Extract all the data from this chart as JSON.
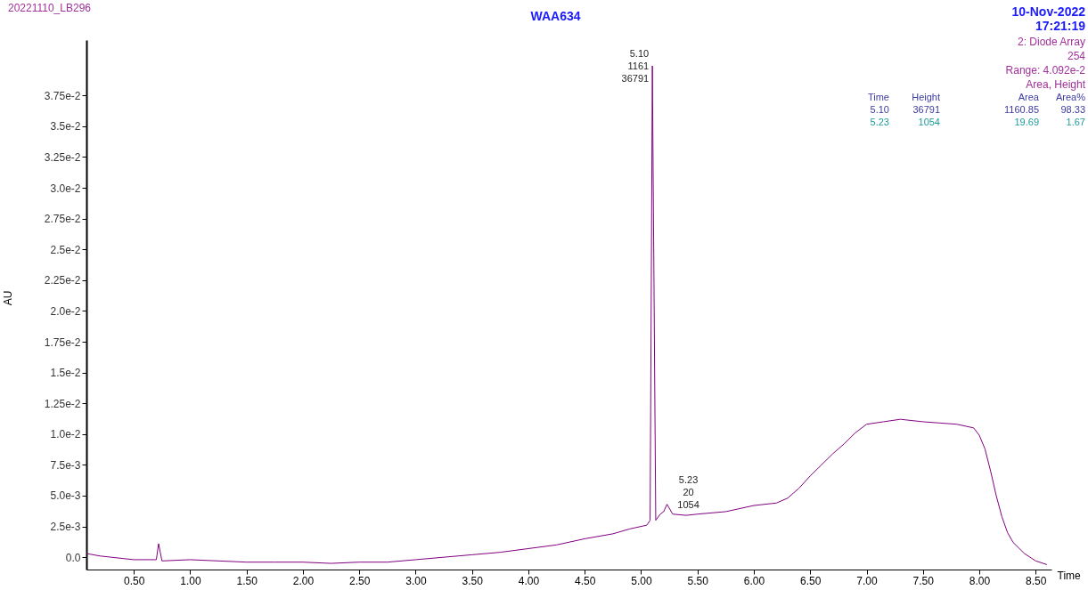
{
  "chart_data": {
    "type": "line",
    "title": "WAA634",
    "xlabel": "Time",
    "ylabel": "AU",
    "x": [
      0.08,
      0.2,
      0.3,
      0.5,
      0.7,
      0.72,
      0.75,
      1.0,
      1.25,
      1.5,
      1.75,
      2.0,
      2.25,
      2.5,
      2.75,
      3.0,
      3.25,
      3.5,
      3.75,
      4.0,
      4.25,
      4.5,
      4.75,
      4.9,
      5.05,
      5.08,
      5.1,
      5.13,
      5.17,
      5.2,
      5.23,
      5.28,
      5.4,
      5.5,
      5.75,
      6.0,
      6.2,
      6.3,
      6.4,
      6.5,
      6.6,
      6.7,
      6.8,
      6.9,
      7.0,
      7.15,
      7.3,
      7.5,
      7.65,
      7.8,
      7.95,
      8.0,
      8.05,
      8.1,
      8.15,
      8.2,
      8.25,
      8.3,
      8.4,
      8.5,
      8.6
    ],
    "series": [
      {
        "color": "#800080",
        "values": [
          0.0003,
          0.0001,
          0.0,
          -0.0002,
          -0.0002,
          0.0011,
          -0.0003,
          -0.0002,
          -0.0003,
          -0.0004,
          -0.0004,
          -0.0004,
          -0.0005,
          -0.0004,
          -0.0004,
          -0.0002,
          0.0,
          0.0002,
          0.0004,
          0.0007,
          0.001,
          0.0015,
          0.0019,
          0.0023,
          0.0026,
          0.003,
          0.0399,
          0.003,
          0.0035,
          0.0037,
          0.0043,
          0.0035,
          0.0034,
          0.0035,
          0.0037,
          0.0042,
          0.0044,
          0.0048,
          0.0056,
          0.0066,
          0.0075,
          0.0084,
          0.0092,
          0.0101,
          0.0108,
          0.011,
          0.0112,
          0.011,
          0.0109,
          0.0108,
          0.0105,
          0.0099,
          0.0088,
          0.007,
          0.005,
          0.0033,
          0.002,
          0.0012,
          0.0003,
          -0.0003,
          -0.0006
        ]
      }
    ],
    "xlim": [
      0.08,
      8.64
    ],
    "ylim": [
      -0.001,
      0.042
    ],
    "xticks": [
      {
        "value": 0.5,
        "label": "0.50"
      },
      {
        "value": 1,
        "label": "1.00"
      },
      {
        "value": 1.5,
        "label": "1.50"
      },
      {
        "value": 2,
        "label": "2.00"
      },
      {
        "value": 2.5,
        "label": "2.50"
      },
      {
        "value": 3,
        "label": "3.00"
      },
      {
        "value": 3.5,
        "label": "3.50"
      },
      {
        "value": 4,
        "label": "4.00"
      },
      {
        "value": 4.5,
        "label": "4.50"
      },
      {
        "value": 5,
        "label": "5.00"
      },
      {
        "value": 5.5,
        "label": "5.50"
      },
      {
        "value": 6,
        "label": "6.00"
      },
      {
        "value": 6.5,
        "label": "6.50"
      },
      {
        "value": 7,
        "label": "7.00"
      },
      {
        "value": 7.5,
        "label": "7.50"
      },
      {
        "value": 8,
        "label": "8.00"
      },
      {
        "value": 8.5,
        "label": "8.50"
      }
    ],
    "yticks": [
      {
        "value": 0,
        "label": "0.0"
      },
      {
        "value": 0.0025,
        "label": "2.5e-3"
      },
      {
        "value": 0.005,
        "label": "5.0e-3"
      },
      {
        "value": 0.0075,
        "label": "7.5e-3"
      },
      {
        "value": 0.01,
        "label": "1.0e-2"
      },
      {
        "value": 0.0125,
        "label": "1.25e-2"
      },
      {
        "value": 0.015,
        "label": "1.5e-2"
      },
      {
        "value": 0.0175,
        "label": "1.75e-2"
      },
      {
        "value": 0.02,
        "label": "2.0e-2"
      },
      {
        "value": 0.0225,
        "label": "2.25e-2"
      },
      {
        "value": 0.025,
        "label": "2.5e-2"
      },
      {
        "value": 0.0275,
        "label": "2.75e-2"
      },
      {
        "value": 0.03,
        "label": "3.0e-2"
      },
      {
        "value": 0.0325,
        "label": "3.25e-2"
      },
      {
        "value": 0.035,
        "label": "3.5e-2"
      },
      {
        "value": 0.0375,
        "label": "3.75e-2"
      }
    ],
    "line_style": "solid",
    "annotations": [
      {
        "text": "5.10\n1161\n36791",
        "x": 5.1,
        "y": 0.0399
      },
      {
        "text": "5.23\n20\n1054",
        "x": 5.23,
        "y": 0.0043
      },
      "20221110_LB296",
      "10-Nov-2022",
      "17:21:19",
      "2: Diode Array",
      "254",
      "Range: 4.092e-2",
      "Area, Height",
      "Time Height Area Area%\n5.10 36791 1160.85 98.33\n5.23 1054 19.69 1.67"
    ]
  }
}
